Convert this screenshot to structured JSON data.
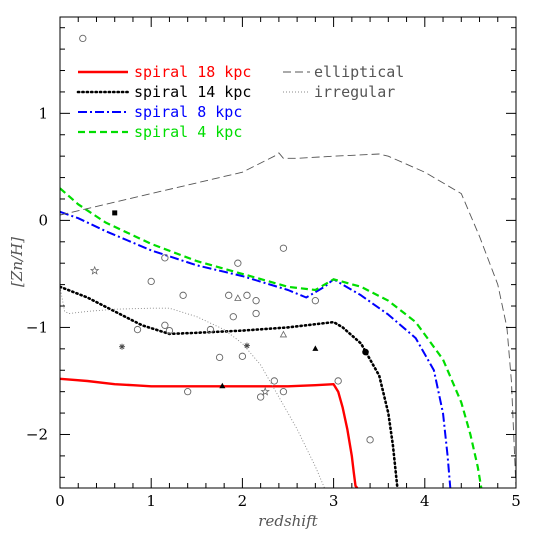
{
  "chart_data": {
    "type": "line",
    "title": "",
    "xlabel": "redshift",
    "ylabel": "[Zn/H]",
    "xlim": [
      0,
      5
    ],
    "ylim": [
      -2.5,
      1.9
    ],
    "x_ticks": [
      0,
      1,
      2,
      3,
      4,
      5
    ],
    "y_ticks": [
      -2,
      -1,
      0,
      1
    ],
    "x_tick_labels": [
      "0",
      "1",
      "2",
      "3",
      "4",
      "5"
    ],
    "y_tick_labels": [
      "−2",
      "−1",
      "0",
      "1"
    ],
    "grid": false,
    "legend_position": "top-left",
    "series": [
      {
        "name": "spiral 18 kpc",
        "color": "#ff0000",
        "style": "solid",
        "x": [
          0,
          0.3,
          0.6,
          0.8,
          1.0,
          1.5,
          2.0,
          2.5,
          2.8,
          3.0,
          3.05,
          3.1,
          3.15,
          3.2,
          3.22,
          3.24,
          3.26
        ],
        "y": [
          -1.48,
          -1.5,
          -1.53,
          -1.54,
          -1.55,
          -1.55,
          -1.55,
          -1.55,
          -1.54,
          -1.53,
          -1.6,
          -1.75,
          -1.95,
          -2.2,
          -2.35,
          -2.48,
          -2.5
        ]
      },
      {
        "name": "spiral 14 kpc",
        "color": "#000000",
        "style": "dotted",
        "x": [
          0,
          0.3,
          0.6,
          0.9,
          1.2,
          1.5,
          2.0,
          2.5,
          2.8,
          3.0,
          3.1,
          3.3,
          3.5,
          3.6,
          3.65,
          3.7
        ],
        "y": [
          -0.62,
          -0.72,
          -0.85,
          -0.98,
          -1.06,
          -1.05,
          -1.03,
          -1.0,
          -0.97,
          -0.95,
          -1.0,
          -1.15,
          -1.45,
          -1.8,
          -2.1,
          -2.5
        ]
      },
      {
        "name": "spiral 8 kpc",
        "color": "#0000ff",
        "style": "dashdot",
        "x": [
          0,
          0.2,
          0.5,
          1.0,
          1.5,
          2.0,
          2.5,
          2.7,
          2.9,
          3.0,
          3.3,
          3.6,
          3.9,
          4.1,
          4.2,
          4.25,
          4.28
        ],
        "y": [
          0.08,
          0.02,
          -0.1,
          -0.28,
          -0.42,
          -0.52,
          -0.65,
          -0.72,
          -0.62,
          -0.55,
          -0.7,
          -0.88,
          -1.1,
          -1.4,
          -1.8,
          -2.2,
          -2.5
        ]
      },
      {
        "name": "spiral 4 kpc",
        "color": "#00dd00",
        "style": "dashed",
        "x": [
          0,
          0.2,
          0.5,
          1.0,
          1.5,
          2.0,
          2.5,
          2.8,
          3.0,
          3.3,
          3.6,
          3.9,
          4.2,
          4.4,
          4.5,
          4.58,
          4.62
        ],
        "y": [
          0.3,
          0.15,
          -0.02,
          -0.22,
          -0.38,
          -0.5,
          -0.62,
          -0.65,
          -0.55,
          -0.62,
          -0.75,
          -0.95,
          -1.3,
          -1.7,
          -2.0,
          -2.3,
          -2.5
        ]
      },
      {
        "name": "elliptical",
        "color": "#555555",
        "style": "longdash",
        "x": [
          0,
          0.5,
          1.0,
          1.5,
          2.0,
          2.35,
          2.4,
          2.45,
          2.6,
          3.0,
          3.5,
          3.6,
          4.0,
          4.4,
          4.6,
          4.8,
          4.9,
          4.95,
          5.0
        ],
        "y": [
          0.05,
          0.15,
          0.25,
          0.35,
          0.45,
          0.6,
          0.63,
          0.58,
          0.58,
          0.6,
          0.62,
          0.6,
          0.45,
          0.25,
          -0.15,
          -0.6,
          -1.0,
          -1.5,
          -2.5
        ]
      },
      {
        "name": "irregular",
        "color": "#888888",
        "style": "finedot",
        "x": [
          0,
          0.05,
          0.1,
          0.3,
          0.6,
          1.0,
          1.2,
          1.5,
          1.8,
          2.0,
          2.2,
          2.4,
          2.6,
          2.8,
          2.9,
          3.0
        ],
        "y": [
          -0.62,
          -0.85,
          -0.87,
          -0.85,
          -0.83,
          -0.82,
          -0.82,
          -0.9,
          -1.02,
          -1.15,
          -1.35,
          -1.65,
          -1.95,
          -2.3,
          -2.5,
          -2.55
        ]
      }
    ],
    "points": {
      "open_circles": [
        {
          "x": 0.25,
          "y": 1.7
        },
        {
          "x": 1.0,
          "y": -0.57
        },
        {
          "x": 1.15,
          "y": -0.35
        },
        {
          "x": 1.95,
          "y": -0.4
        },
        {
          "x": 2.45,
          "y": -0.26
        },
        {
          "x": 1.35,
          "y": -0.7
        },
        {
          "x": 1.85,
          "y": -0.7
        },
        {
          "x": 2.05,
          "y": -0.7
        },
        {
          "x": 2.15,
          "y": -0.75
        },
        {
          "x": 2.15,
          "y": -0.87
        },
        {
          "x": 1.9,
          "y": -0.9
        },
        {
          "x": 2.8,
          "y": -0.75
        },
        {
          "x": 0.85,
          "y": -1.02
        },
        {
          "x": 1.15,
          "y": -0.98
        },
        {
          "x": 1.2,
          "y": -1.03
        },
        {
          "x": 1.65,
          "y": -1.02
        },
        {
          "x": 2.0,
          "y": -1.27
        },
        {
          "x": 1.75,
          "y": -1.28
        },
        {
          "x": 2.35,
          "y": -1.5
        },
        {
          "x": 1.4,
          "y": -1.6
        },
        {
          "x": 2.2,
          "y": -1.65
        },
        {
          "x": 2.45,
          "y": -1.6
        },
        {
          "x": 3.05,
          "y": -1.5
        },
        {
          "x": 3.4,
          "y": -2.05
        }
      ],
      "filled_squares": [
        {
          "x": 0.6,
          "y": 0.07
        }
      ],
      "open_stars": [
        {
          "x": 0.38,
          "y": -0.47
        },
        {
          "x": 2.25,
          "y": -1.6
        }
      ],
      "asterisks": [
        {
          "x": 0.68,
          "y": -1.18
        },
        {
          "x": 2.05,
          "y": -1.17
        }
      ],
      "open_triangles": [
        {
          "x": 1.95,
          "y": -0.73
        },
        {
          "x": 2.45,
          "y": -1.07
        }
      ],
      "filled_triangles": [
        {
          "x": 2.8,
          "y": -1.2
        },
        {
          "x": 1.78,
          "y": -1.55
        }
      ],
      "filled_circles": [
        {
          "x": 3.35,
          "y": -1.23
        }
      ]
    }
  }
}
